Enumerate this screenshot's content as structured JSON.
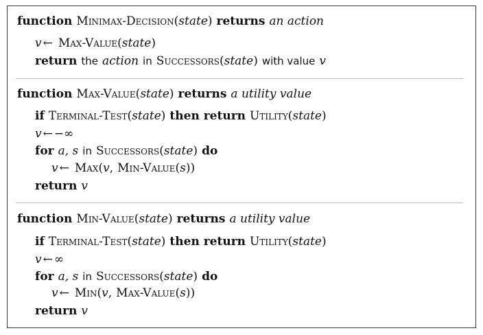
{
  "functions": [
    {
      "header": {
        "kw_function": "function",
        "name": "Minimax-Decision",
        "paren_open": "(",
        "param": "state",
        "paren_close": ")",
        "kw_returns": "returns",
        "return_desc": "an action"
      },
      "body": {
        "l1": {
          "var": "v",
          "arrow": "←",
          "call": "Max-Value",
          "po": "(",
          "arg": "state",
          "pc": ")"
        },
        "l2": {
          "kw": "return",
          "t1": "the",
          "action": "action",
          "t2": "in",
          "succ": "Successors",
          "po": "(",
          "arg": "state",
          "pc": ")",
          "t3": "with value",
          "var": "v"
        }
      }
    },
    {
      "header": {
        "kw_function": "function",
        "name": "Max-Value",
        "paren_open": "(",
        "param": "state",
        "paren_close": ")",
        "kw_returns": "returns",
        "return_desc": "a utility value"
      },
      "body": {
        "l1": {
          "kw_if": "if",
          "test": "Terminal-Test",
          "po": "(",
          "arg": "state",
          "pc": ")",
          "kw_then": "then return",
          "util": "Utility",
          "po2": "(",
          "arg2": "state",
          "pc2": ")"
        },
        "l2": {
          "var": "v",
          "arrow": "←",
          "value": "−∞"
        },
        "l3": {
          "kw_for": "for",
          "vars": "a, s",
          "t_in": "in",
          "succ": "Successors",
          "po": "(",
          "arg": "state",
          "pc": ")",
          "kw_do": "do"
        },
        "l4": {
          "var": "v",
          "arrow": "←",
          "fn": "Max",
          "open": "(",
          "var2": "v",
          "comma": ",",
          "inner": "Min-Value",
          "ipo": "(",
          "iarg": "s",
          "ipc": "))"
        },
        "l5": {
          "kw": "return",
          "var": "v"
        }
      }
    },
    {
      "header": {
        "kw_function": "function",
        "name": "Min-Value",
        "paren_open": "(",
        "param": "state",
        "paren_close": ")",
        "kw_returns": "returns",
        "return_desc": "a utility value"
      },
      "body": {
        "l1": {
          "kw_if": "if",
          "test": "Terminal-Test",
          "po": "(",
          "arg": "state",
          "pc": ")",
          "kw_then": "then return",
          "util": "Utility",
          "po2": "(",
          "arg2": "state",
          "pc2": ")"
        },
        "l2": {
          "var": "v",
          "arrow": "←",
          "value": "∞"
        },
        "l3": {
          "kw_for": "for",
          "vars": "a, s",
          "t_in": "in",
          "succ": "Successors",
          "po": "(",
          "arg": "state",
          "pc": ")",
          "kw_do": "do"
        },
        "l4": {
          "var": "v",
          "arrow": "←",
          "fn": "Min",
          "open": "(",
          "var2": "v",
          "comma": ",",
          "inner": "Max-Value",
          "ipo": "(",
          "iarg": "s",
          "ipc": "))"
        },
        "l5": {
          "kw": "return",
          "var": "v"
        }
      }
    }
  ]
}
